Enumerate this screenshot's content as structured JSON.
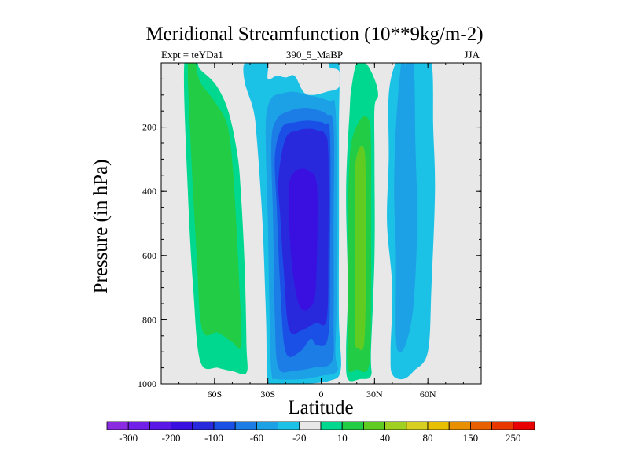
{
  "chart_data": {
    "type": "filled-contour",
    "title": "Meridional Streamfunction (10**9kg/m-2)",
    "left_label": "Expt = teYDa1",
    "center_label": "390_5_MaBP",
    "right_label": "JJA",
    "xlabel": "Latitude",
    "ylabel": "Pressure (in hPa)",
    "xlim": [
      -90,
      90
    ],
    "ylim": [
      0,
      1000
    ],
    "y_inverted": true,
    "x_ticks": [
      {
        "value": -60,
        "label": "60S"
      },
      {
        "value": -30,
        "label": "30S"
      },
      {
        "value": 0,
        "label": "0"
      },
      {
        "value": 30,
        "label": "30N"
      },
      {
        "value": 60,
        "label": "60N"
      }
    ],
    "y_ticks": [
      {
        "value": 200,
        "label": "200"
      },
      {
        "value": 400,
        "label": "400"
      },
      {
        "value": 600,
        "label": "600"
      },
      {
        "value": 800,
        "label": "800"
      },
      {
        "value": 1000,
        "label": "1000"
      }
    ],
    "colorbar": {
      "colors": [
        "#8a2be2",
        "#7020e8",
        "#5a18e6",
        "#3a10e0",
        "#2828dc",
        "#1a50e6",
        "#1c7de6",
        "#1ca0e6",
        "#1cc2e6",
        "#e8e8e8",
        "#00d890",
        "#22cc44",
        "#60cc22",
        "#a0d020",
        "#d8d020",
        "#e8c000",
        "#e89000",
        "#e86000",
        "#e83800",
        "#e80000"
      ],
      "labels": [
        {
          "value": "-300",
          "boundary": 1
        },
        {
          "value": "-200",
          "boundary": 3
        },
        {
          "value": "-100",
          "boundary": 5
        },
        {
          "value": "-60",
          "boundary": 7
        },
        {
          "value": "-20",
          "boundary": 9
        },
        {
          "value": "10",
          "boundary": 11
        },
        {
          "value": "40",
          "boundary": 13
        },
        {
          "value": "80",
          "boundary": 15
        },
        {
          "value": "150",
          "boundary": 17
        },
        {
          "value": "250",
          "boundary": 19
        }
      ]
    },
    "regions": [
      {
        "name": "sh-ferrel-outer",
        "level": 10,
        "color": "#00d890",
        "points": [
          [
            -77,
            0
          ],
          [
            -70,
            0
          ],
          [
            -68,
            20
          ],
          [
            -59,
            70
          ],
          [
            -52,
            155
          ],
          [
            -47,
            290
          ],
          [
            -45,
            420
          ],
          [
            -43,
            640
          ],
          [
            -42,
            880
          ],
          [
            -42,
            965
          ],
          [
            -50,
            960
          ],
          [
            -58,
            950
          ],
          [
            -68,
            930
          ],
          [
            -72,
            700
          ],
          [
            -75,
            400
          ]
        ]
      },
      {
        "name": "sh-ferrel-inner",
        "level": 20,
        "color": "#22cc44",
        "points": [
          [
            -75,
            0
          ],
          [
            -71,
            0
          ],
          [
            -68,
            60
          ],
          [
            -60,
            120
          ],
          [
            -53,
            190
          ],
          [
            -50,
            310
          ],
          [
            -48,
            480
          ],
          [
            -46,
            700
          ],
          [
            -45,
            880
          ],
          [
            -50,
            870
          ],
          [
            -58,
            840
          ],
          [
            -67,
            830
          ],
          [
            -70,
            600
          ],
          [
            -73,
            300
          ]
        ]
      },
      {
        "name": "hadley-m10",
        "level": -10,
        "color": "#1cc2e6",
        "points": [
          [
            -43,
            0
          ],
          [
            -35,
            0
          ],
          [
            -30,
            0
          ],
          [
            -30,
            50
          ],
          [
            -25,
            40
          ],
          [
            -20,
            45
          ],
          [
            -15,
            40
          ],
          [
            -10,
            90
          ],
          [
            -5,
            100
          ],
          [
            3,
            90
          ],
          [
            10,
            75
          ],
          [
            10,
            25
          ],
          [
            5,
            15
          ],
          [
            5,
            0
          ],
          [
            10,
            0
          ],
          [
            10,
            200
          ],
          [
            10,
            500
          ],
          [
            10,
            800
          ],
          [
            11,
            955
          ],
          [
            5,
            990
          ],
          [
            -10,
            1000
          ],
          [
            -25,
            1000
          ],
          [
            -30,
            990
          ],
          [
            -31,
            800
          ],
          [
            -33,
            500
          ],
          [
            -36,
            250
          ],
          [
            -38,
            150
          ],
          [
            -43,
            60
          ]
        ]
      },
      {
        "name": "hadley-m20",
        "level": -20,
        "color": "#1ca0e6",
        "points": [
          [
            -31,
            170
          ],
          [
            -28,
            110
          ],
          [
            -22,
            95
          ],
          [
            -15,
            90
          ],
          [
            -8,
            100
          ],
          [
            -3,
            105
          ],
          [
            0,
            110
          ],
          [
            5,
            120
          ],
          [
            8,
            140
          ],
          [
            9,
            400
          ],
          [
            9,
            700
          ],
          [
            8,
            900
          ],
          [
            9,
            960
          ],
          [
            0,
            975
          ],
          [
            -10,
            985
          ],
          [
            -25,
            985
          ],
          [
            -28,
            965
          ],
          [
            -29,
            800
          ],
          [
            -30,
            500
          ],
          [
            -31,
            300
          ]
        ]
      },
      {
        "name": "hadley-m60",
        "level": -60,
        "color": "#1c7de6",
        "points": [
          [
            -28,
            250
          ],
          [
            -25,
            175
          ],
          [
            -18,
            150
          ],
          [
            -10,
            140
          ],
          [
            -3,
            145
          ],
          [
            3,
            160
          ],
          [
            7,
            200
          ],
          [
            7,
            500
          ],
          [
            7,
            800
          ],
          [
            6,
            930
          ],
          [
            -5,
            950
          ],
          [
            -15,
            958
          ],
          [
            -24,
            950
          ],
          [
            -26,
            800
          ],
          [
            -27,
            500
          ]
        ]
      },
      {
        "name": "hadley-m100",
        "level": -100,
        "color": "#1a50e6",
        "points": [
          [
            -26,
            290
          ],
          [
            -22,
            200
          ],
          [
            -15,
            185
          ],
          [
            -8,
            180
          ],
          [
            -3,
            182
          ],
          [
            2,
            190
          ],
          [
            5,
            230
          ],
          [
            5,
            600
          ],
          [
            4,
            850
          ],
          [
            -2,
            880
          ],
          [
            -6,
            860
          ],
          [
            -12,
            900
          ],
          [
            -20,
            900
          ],
          [
            -23,
            700
          ],
          [
            -25,
            450
          ]
        ]
      },
      {
        "name": "hadley-m150",
        "level": -150,
        "color": "#2828dc",
        "points": [
          [
            -24,
            360
          ],
          [
            -20,
            235
          ],
          [
            -13,
            210
          ],
          [
            -6,
            205
          ],
          [
            -2,
            210
          ],
          [
            2,
            220
          ],
          [
            4,
            280
          ],
          [
            4,
            600
          ],
          [
            3,
            800
          ],
          [
            -3,
            810
          ],
          [
            -10,
            830
          ],
          [
            -18,
            830
          ],
          [
            -21,
            650
          ],
          [
            -23,
            480
          ]
        ]
      },
      {
        "name": "hadley-m200",
        "level": -200,
        "color": "#3a10e0",
        "points": [
          [
            -18,
            380
          ],
          [
            -15,
            340
          ],
          [
            -10,
            330
          ],
          [
            -6,
            340
          ],
          [
            -3,
            360
          ],
          [
            -2,
            450
          ],
          [
            -3,
            700
          ],
          [
            -6,
            760
          ],
          [
            -12,
            760
          ],
          [
            -16,
            650
          ],
          [
            -18,
            500
          ]
        ]
      },
      {
        "name": "nh-cell-10",
        "level": 10,
        "color": "#00d890",
        "points": [
          [
            20,
            0
          ],
          [
            25,
            0
          ],
          [
            30,
            50
          ],
          [
            32,
            100
          ],
          [
            30,
            140
          ],
          [
            30,
            300
          ],
          [
            30,
            600
          ],
          [
            28,
            900
          ],
          [
            28,
            975
          ],
          [
            22,
            985
          ],
          [
            15,
            985
          ],
          [
            14,
            900
          ],
          [
            15,
            700
          ],
          [
            14,
            400
          ],
          [
            16,
            150
          ],
          [
            17,
            80
          ]
        ]
      },
      {
        "name": "nh-cell-20",
        "level": 20,
        "color": "#22cc44",
        "points": [
          [
            18,
            225
          ],
          [
            23,
            170
          ],
          [
            27,
            180
          ],
          [
            28,
            250
          ],
          [
            28,
            500
          ],
          [
            28,
            700
          ],
          [
            27,
            940
          ],
          [
            20,
            955
          ],
          [
            15,
            950
          ],
          [
            15,
            800
          ],
          [
            15,
            500
          ],
          [
            16,
            300
          ]
        ]
      },
      {
        "name": "nh-cell-40",
        "level": 40,
        "color": "#60cc22",
        "points": [
          [
            19,
            330
          ],
          [
            21,
            270
          ],
          [
            24,
            265
          ],
          [
            25,
            340
          ],
          [
            25,
            550
          ],
          [
            25,
            750
          ],
          [
            24,
            880
          ],
          [
            21,
            890
          ],
          [
            19,
            860
          ],
          [
            19,
            650
          ],
          [
            19,
            450
          ]
        ]
      },
      {
        "name": "nh-ferrel-m10",
        "level": -10,
        "color": "#1cc2e6",
        "points": [
          [
            42,
            0
          ],
          [
            47,
            0
          ],
          [
            50,
            0
          ],
          [
            54,
            0
          ],
          [
            62,
            0
          ],
          [
            63,
            200
          ],
          [
            64,
            400
          ],
          [
            62,
            700
          ],
          [
            60,
            900
          ],
          [
            52,
            960
          ],
          [
            46,
            985
          ],
          [
            40,
            970
          ],
          [
            39,
            900
          ],
          [
            40,
            700
          ],
          [
            37,
            500
          ],
          [
            38,
            300
          ],
          [
            38,
            100
          ]
        ]
      },
      {
        "name": "nh-ferrel-m20",
        "level": -20,
        "color": "#1ca0e6",
        "points": [
          [
            45,
            0
          ],
          [
            47,
            0
          ],
          [
            48,
            40
          ],
          [
            48,
            0
          ],
          [
            52,
            0
          ],
          [
            53,
            250
          ],
          [
            54,
            500
          ],
          [
            52,
            750
          ],
          [
            48,
            870
          ],
          [
            44,
            900
          ],
          [
            42,
            850
          ],
          [
            42,
            600
          ],
          [
            41,
            400
          ],
          [
            42,
            200
          ]
        ]
      }
    ]
  }
}
